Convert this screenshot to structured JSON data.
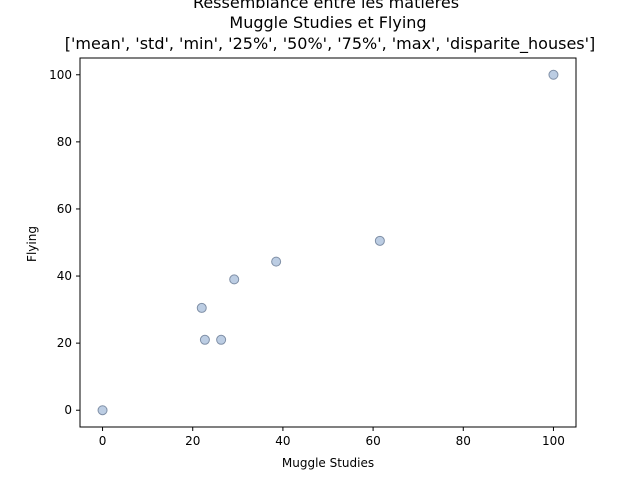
{
  "chart_data": {
    "type": "scatter",
    "title_lines": [
      "Ressemblance entre les matières",
      "Muggle Studies et Flying",
      "['mean', 'std', 'min', '25%', '50%', '75%', 'max', 'disparite_houses']"
    ],
    "xlabel": "Muggle Studies",
    "ylabel": "Flying",
    "xlim": [
      -5,
      105
    ],
    "ylim": [
      -5,
      105
    ],
    "xticks": [
      0,
      20,
      40,
      60,
      80,
      100
    ],
    "yticks": [
      0,
      20,
      40,
      60,
      80,
      100
    ],
    "grid": false,
    "series": [
      {
        "points": [
          {
            "x": 0,
            "y": 0
          },
          {
            "x": 22,
            "y": 30.5
          },
          {
            "x": 22.7,
            "y": 21
          },
          {
            "x": 26.3,
            "y": 21
          },
          {
            "x": 29.2,
            "y": 39
          },
          {
            "x": 38.5,
            "y": 44.3
          },
          {
            "x": 61.5,
            "y": 50.5
          },
          {
            "x": 100,
            "y": 100
          }
        ],
        "color": "#b0c4de",
        "edge_color": "#7f8fa6"
      }
    ]
  }
}
